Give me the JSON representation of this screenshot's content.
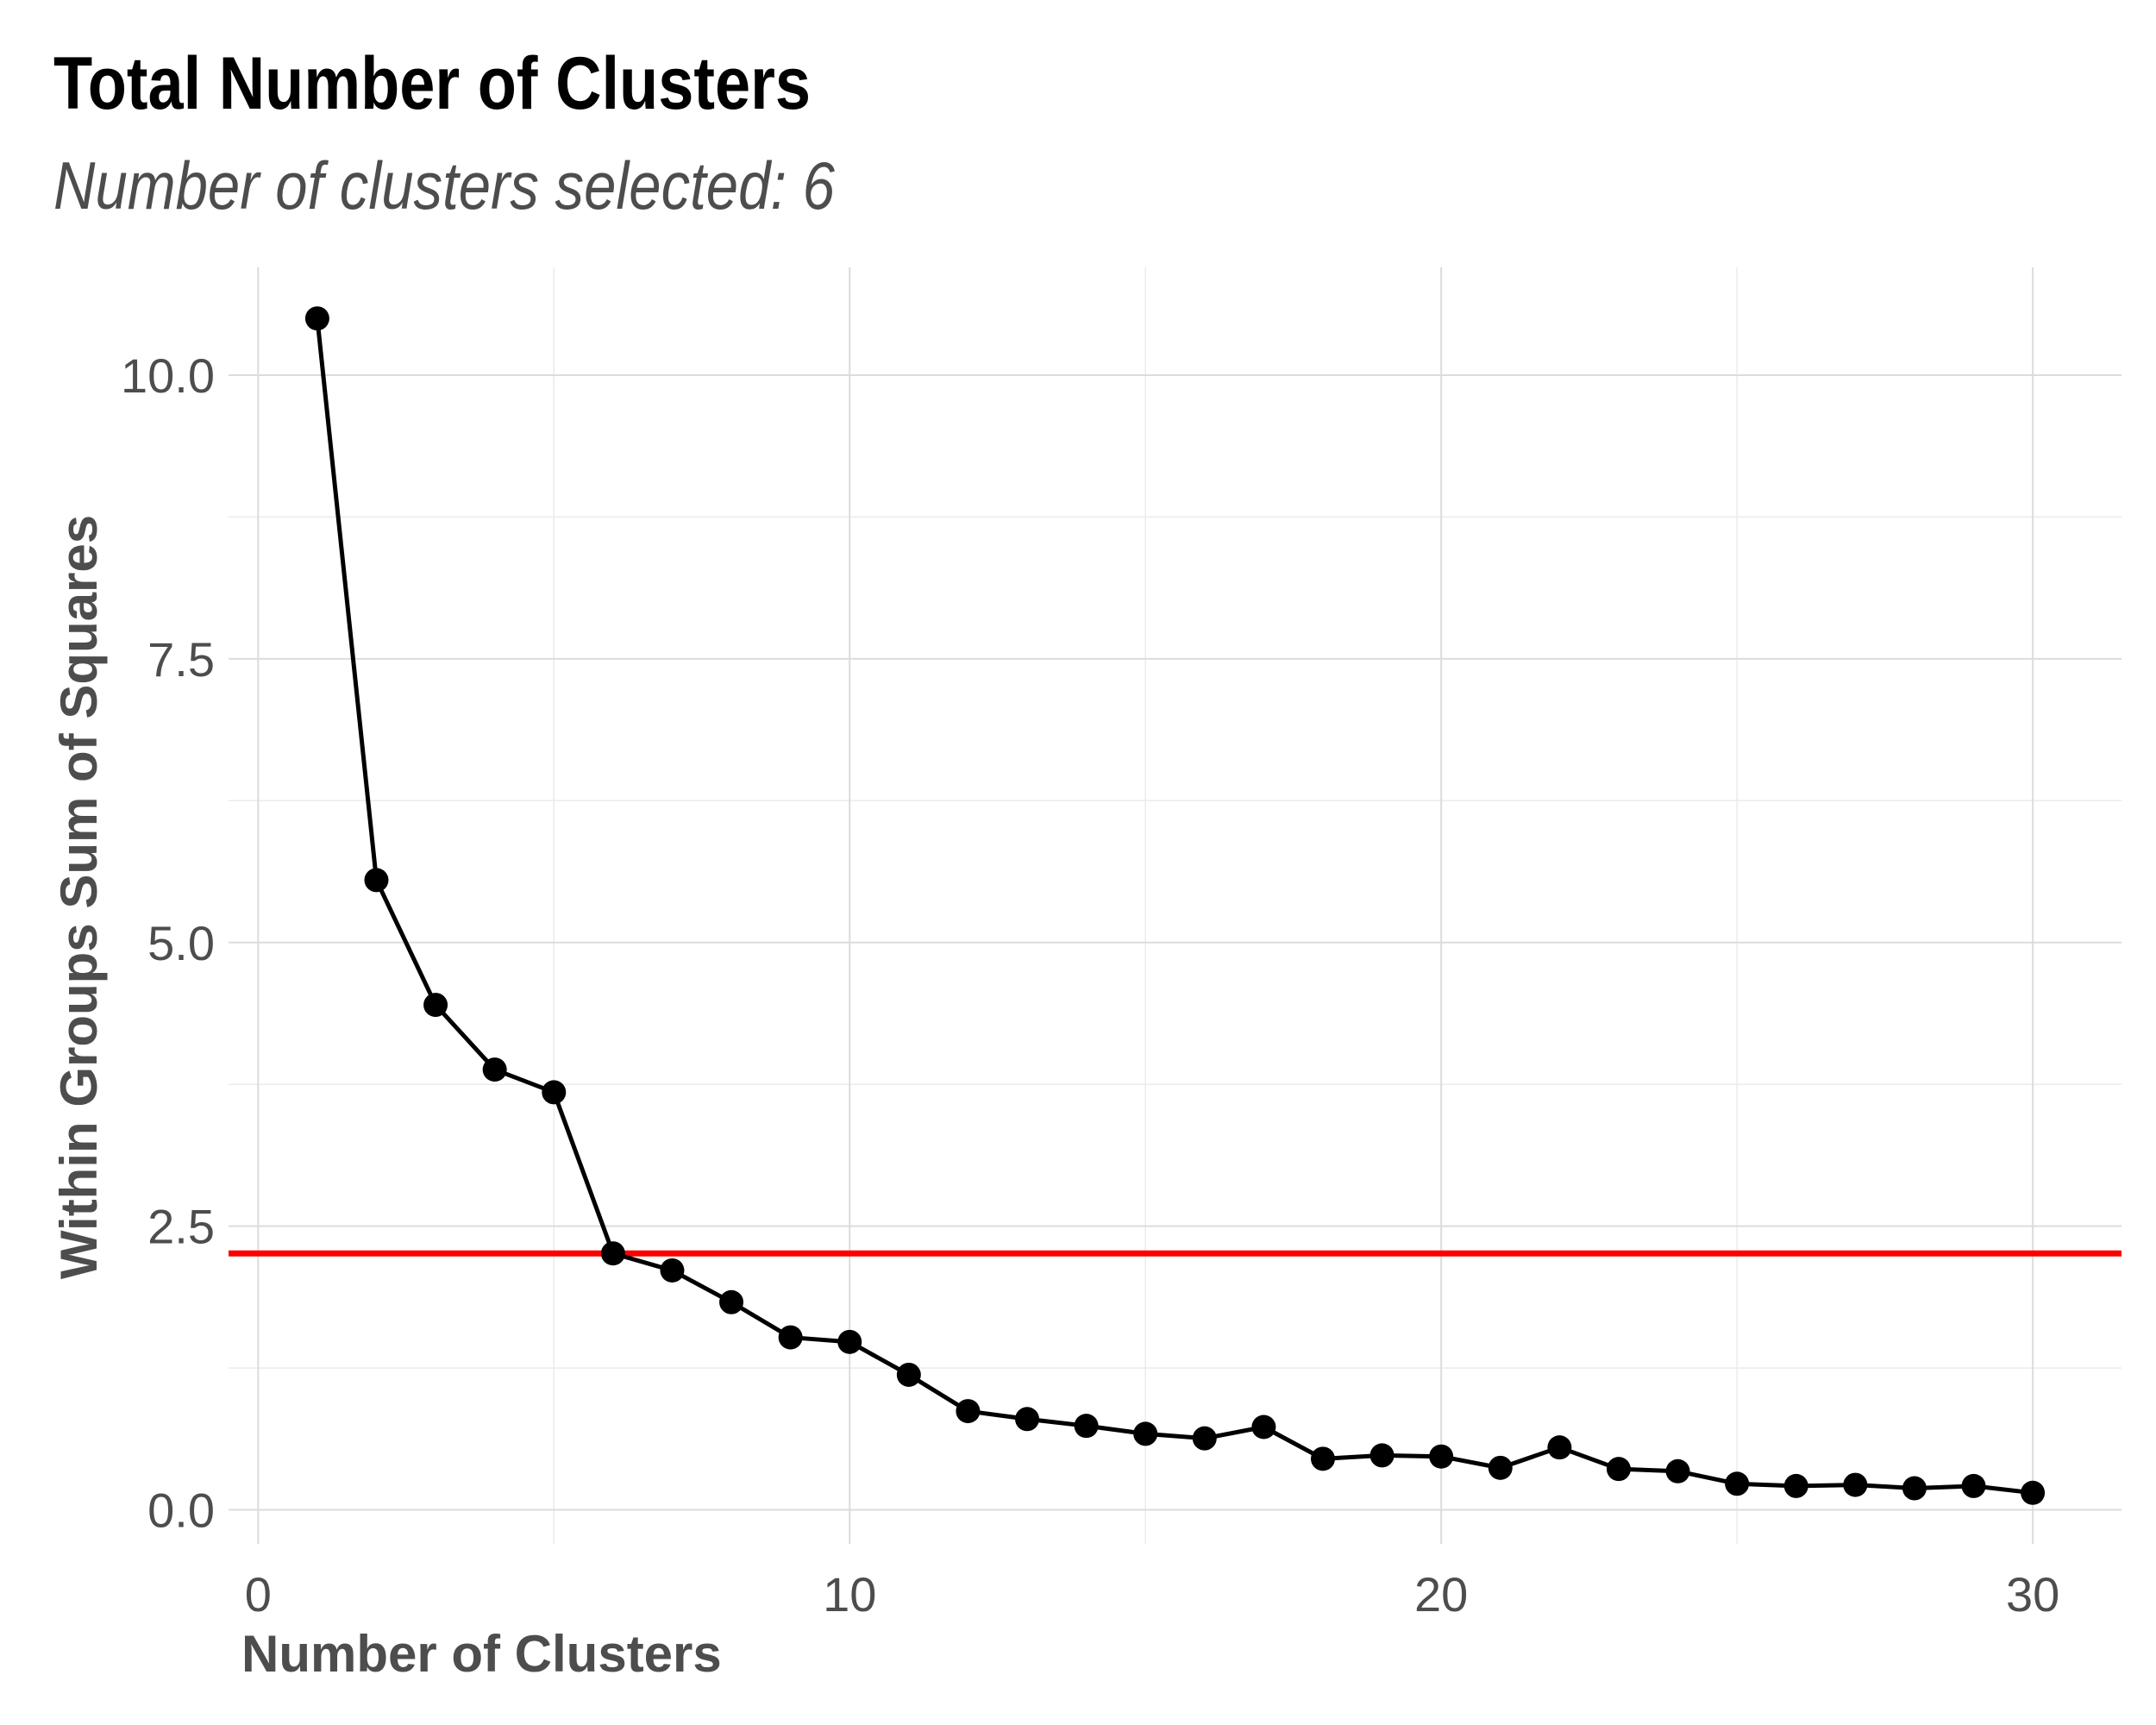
{
  "chart_data": {
    "type": "line",
    "title": "Total Number of Clusters",
    "subtitle": "Number of clusters selected: 6",
    "xlabel": "Number of Clusters",
    "ylabel": "Within Groups Sum of Squares",
    "xlim": [
      -0.5,
      31.5
    ],
    "ylim": [
      -0.3,
      10.95
    ],
    "x_ticks": [
      0,
      10,
      20,
      30
    ],
    "x_tick_labels": [
      "0",
      "10",
      "20",
      "30"
    ],
    "y_ticks": [
      0,
      2.5,
      5,
      7.5,
      10
    ],
    "y_tick_labels": [
      "0.0",
      "2.5",
      "5.0",
      "7.5",
      "10.0"
    ],
    "grid": true,
    "series": [
      {
        "color": "#000000",
        "markers": true,
        "x": [
          1,
          2,
          3,
          4,
          5,
          6,
          7,
          8,
          9,
          10,
          11,
          12,
          13,
          14,
          15,
          16,
          17,
          18,
          19,
          20,
          21,
          22,
          23,
          24,
          25,
          26,
          27,
          28,
          29,
          30
        ],
        "values": [
          10.5,
          5.55,
          4.45,
          3.88,
          3.68,
          2.26,
          2.11,
          1.83,
          1.52,
          1.48,
          1.19,
          0.87,
          0.8,
          0.74,
          0.67,
          0.63,
          0.73,
          0.45,
          0.48,
          0.47,
          0.37,
          0.55,
          0.36,
          0.34,
          0.23,
          0.21,
          0.22,
          0.19,
          0.21,
          0.15
        ]
      }
    ],
    "reference_line": {
      "orientation": "horizontal",
      "y": 2.26,
      "color": "#ff0000"
    }
  }
}
